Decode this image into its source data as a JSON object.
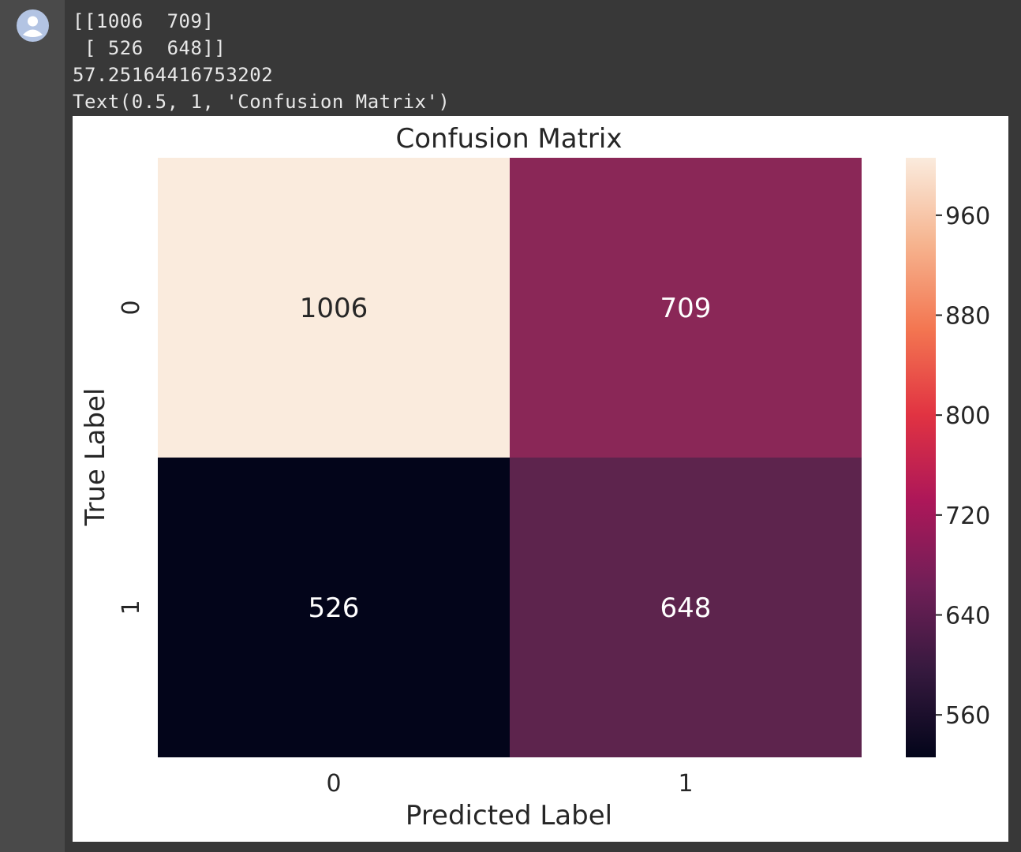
{
  "output": {
    "lines": [
      "[[1006  709]",
      " [ 526  648]]",
      "57.25164416753202",
      "Text(0.5, 1, 'Confusion Matrix')"
    ]
  },
  "chart_data": {
    "type": "heatmap",
    "title": "Confusion Matrix",
    "xlabel": "Predicted Label",
    "ylabel": "True Label",
    "x_categories": [
      "0",
      "1"
    ],
    "y_categories": [
      "0",
      "1"
    ],
    "values": [
      [
        1006,
        709
      ],
      [
        526,
        648
      ]
    ],
    "cell_labels": [
      [
        "1006",
        "709"
      ],
      [
        "526",
        "648"
      ]
    ],
    "colormap": "rocket",
    "colorbar": {
      "range": [
        526,
        1006
      ],
      "ticks": [
        960,
        880,
        800,
        720,
        640,
        560
      ],
      "tick_labels": [
        "960",
        "880",
        "800",
        "720",
        "640",
        "560"
      ]
    },
    "cell_colors": [
      [
        "#faebdd",
        "#8a2757"
      ],
      [
        "#03051a",
        "#5d244d"
      ]
    ],
    "colorbar_stops": [
      "#03051a",
      "#35193e",
      "#701f57",
      "#ad1759",
      "#e13342",
      "#f37651",
      "#f6b48f",
      "#faebdd"
    ]
  }
}
